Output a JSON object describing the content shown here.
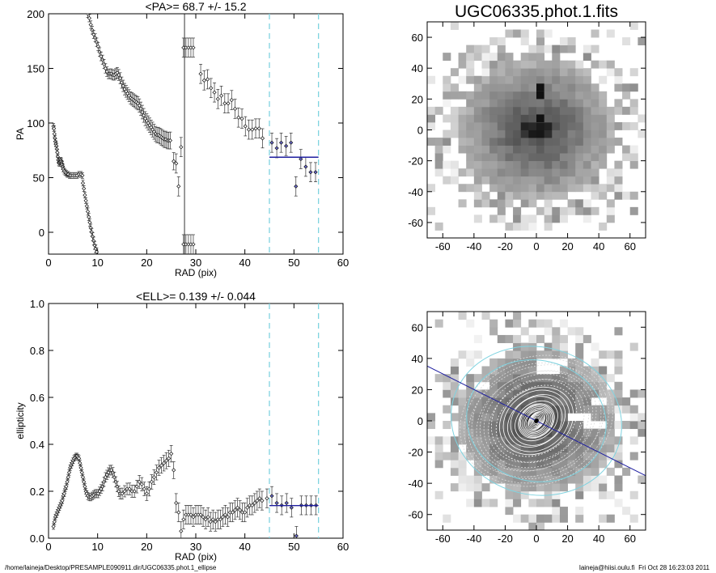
{
  "chart_data": [
    {
      "id": "pa",
      "type": "scatter",
      "title": "<PA>=  68.7 +/-  15.2",
      "xlabel": "RAD (pix)",
      "ylabel": "PA",
      "xlim": [
        0,
        60
      ],
      "ylim": [
        -20,
        200
      ],
      "xticks": [
        0,
        10,
        20,
        30,
        40,
        50,
        60
      ],
      "yticks": [
        0,
        50,
        100,
        150,
        200
      ],
      "vlines": [
        45,
        55
      ],
      "vline_color": "#7fd3e0",
      "mean": 68.7,
      "mean_range": [
        45,
        55
      ],
      "mean_color": "#1f1fa0",
      "points": [
        [
          1.0,
          97
        ],
        [
          1.1,
          95
        ],
        [
          1.2,
          90
        ],
        [
          1.3,
          86
        ],
        [
          1.4,
          83
        ],
        [
          1.5,
          81
        ],
        [
          1.6,
          79
        ],
        [
          1.7,
          76
        ],
        [
          1.8,
          73
        ],
        [
          1.9,
          69
        ],
        [
          2.0,
          66
        ],
        [
          2.1,
          64
        ],
        [
          2.2,
          63
        ],
        [
          2.3,
          64
        ],
        [
          2.4,
          65
        ],
        [
          2.5,
          66
        ],
        [
          2.6,
          65
        ],
        [
          2.7,
          63
        ],
        [
          2.8,
          62
        ],
        [
          2.9,
          60
        ],
        [
          3.0,
          58
        ],
        [
          3.2,
          56
        ],
        [
          3.4,
          55
        ],
        [
          3.6,
          54
        ],
        [
          3.8,
          53
        ],
        [
          4.0,
          53
        ],
        [
          4.3,
          52
        ],
        [
          4.6,
          52
        ],
        [
          5.0,
          52
        ],
        [
          5.4,
          52
        ],
        [
          5.8,
          52
        ],
        [
          6.2,
          53
        ],
        [
          6.6,
          53
        ],
        [
          6.9,
          52
        ],
        [
          7.0,
          45
        ],
        [
          7.2,
          40
        ],
        [
          7.4,
          34
        ],
        [
          7.6,
          29
        ],
        [
          7.8,
          24
        ],
        [
          8.0,
          19
        ],
        [
          8.2,
          14
        ],
        [
          8.4,
          9
        ],
        [
          8.6,
          4
        ],
        [
          8.8,
          0
        ],
        [
          9.0,
          -4
        ],
        [
          9.2,
          -8
        ],
        [
          9.4,
          -12
        ],
        [
          9.6,
          -15
        ],
        [
          9.8,
          -18
        ],
        [
          8.0,
          200
        ],
        [
          8.3,
          196
        ],
        [
          8.6,
          190
        ],
        [
          8.9,
          185
        ],
        [
          9.2,
          181
        ],
        [
          9.5,
          178
        ],
        [
          9.8,
          174
        ],
        [
          10.1,
          170
        ],
        [
          10.4,
          165
        ],
        [
          10.7,
          161
        ],
        [
          11.0,
          158
        ],
        [
          11.3,
          154
        ],
        [
          11.6,
          150
        ],
        [
          11.9,
          147
        ],
        [
          12.2,
          145
        ],
        [
          12.5,
          145
        ],
        [
          12.8,
          145
        ],
        [
          13.1,
          144
        ],
        [
          13.4,
          144
        ],
        [
          13.7,
          145
        ],
        [
          14.0,
          146
        ],
        [
          14.3,
          144
        ],
        [
          14.6,
          141
        ],
        [
          14.9,
          137
        ],
        [
          15.2,
          134
        ],
        [
          15.5,
          131
        ],
        [
          15.8,
          129
        ],
        [
          16.1,
          127
        ],
        [
          16.4,
          125
        ],
        [
          16.7,
          123
        ],
        [
          17.0,
          122
        ],
        [
          17.3,
          121
        ],
        [
          17.6,
          120
        ],
        [
          17.9,
          119
        ],
        [
          18.2,
          118
        ],
        [
          18.5,
          116
        ],
        [
          18.8,
          113
        ],
        [
          19.1,
          110
        ],
        [
          19.4,
          107
        ],
        [
          19.7,
          104
        ],
        [
          20.0,
          102
        ],
        [
          20.3,
          100
        ],
        [
          20.6,
          98
        ],
        [
          20.9,
          96
        ],
        [
          21.2,
          94
        ],
        [
          21.5,
          92
        ],
        [
          21.8,
          90
        ],
        [
          22.1,
          89
        ],
        [
          22.4,
          89
        ],
        [
          22.7,
          88
        ],
        [
          23.0,
          87
        ],
        [
          23.3,
          86
        ],
        [
          23.6,
          85
        ],
        [
          23.9,
          85
        ],
        [
          24.2,
          84
        ],
        [
          24.5,
          84
        ],
        [
          24.8,
          84
        ],
        [
          25.5,
          65
        ],
        [
          26.0,
          63
        ],
        [
          26.5,
          42
        ],
        [
          27.0,
          78
        ],
        [
          27.5,
          169
        ],
        [
          28.0,
          169
        ],
        [
          28.5,
          169
        ],
        [
          29.0,
          169
        ],
        [
          29.5,
          169
        ],
        [
          27.5,
          -11
        ],
        [
          28.0,
          -11
        ],
        [
          28.5,
          -11
        ],
        [
          29.0,
          -11
        ],
        [
          29.5,
          -11
        ],
        [
          31.0,
          145
        ],
        [
          31.7,
          139
        ],
        [
          32.4,
          140
        ],
        [
          33.1,
          132
        ],
        [
          33.8,
          128
        ],
        [
          34.5,
          122
        ],
        [
          35.2,
          125
        ],
        [
          35.9,
          118
        ],
        [
          36.6,
          118
        ],
        [
          37.3,
          121
        ],
        [
          38.0,
          113
        ],
        [
          38.7,
          105
        ],
        [
          39.4,
          104
        ],
        [
          40.1,
          97
        ],
        [
          40.8,
          94
        ],
        [
          41.5,
          94
        ],
        [
          42.2,
          95
        ],
        [
          42.9,
          95
        ],
        [
          43.6,
          86
        ],
        [
          45.5,
          82
        ],
        [
          46.5,
          77
        ],
        [
          47.4,
          82
        ],
        [
          48.4,
          79
        ],
        [
          49.4,
          82
        ],
        [
          50.4,
          42
        ],
        [
          51.4,
          67
        ],
        [
          52.4,
          60
        ],
        [
          53.4,
          55
        ],
        [
          54.4,
          55
        ]
      ]
    },
    {
      "id": "ell",
      "type": "scatter",
      "title": "<ELL>= 0.139 +/-  0.044",
      "xlabel": "RAD (pix)",
      "ylabel": "ellipticity",
      "xlim": [
        0,
        60
      ],
      "ylim": [
        0,
        1
      ],
      "xticks": [
        0,
        10,
        20,
        30,
        40,
        50,
        60
      ],
      "yticks": [
        0.0,
        0.2,
        0.4,
        0.6,
        0.8,
        1.0
      ],
      "vlines": [
        45,
        55
      ],
      "vline_color": "#7fd3e0",
      "mean": 0.139,
      "mean_range": [
        45,
        55
      ],
      "mean_color": "#1f1fa0",
      "points": [
        [
          1.0,
          0.05
        ],
        [
          1.2,
          0.07
        ],
        [
          1.4,
          0.09
        ],
        [
          1.6,
          0.1
        ],
        [
          1.8,
          0.11
        ],
        [
          2.0,
          0.12
        ],
        [
          2.2,
          0.13
        ],
        [
          2.4,
          0.14
        ],
        [
          2.6,
          0.15
        ],
        [
          2.8,
          0.16
        ],
        [
          3.0,
          0.18
        ],
        [
          3.2,
          0.19
        ],
        [
          3.4,
          0.21
        ],
        [
          3.6,
          0.22
        ],
        [
          3.8,
          0.24
        ],
        [
          4.0,
          0.26
        ],
        [
          4.2,
          0.28
        ],
        [
          4.4,
          0.3
        ],
        [
          4.6,
          0.31
        ],
        [
          4.8,
          0.32
        ],
        [
          5.0,
          0.33
        ],
        [
          5.2,
          0.34
        ],
        [
          5.4,
          0.345
        ],
        [
          5.6,
          0.35
        ],
        [
          5.8,
          0.35
        ],
        [
          6.0,
          0.345
        ],
        [
          6.2,
          0.34
        ],
        [
          6.4,
          0.32
        ],
        [
          6.6,
          0.3
        ],
        [
          6.8,
          0.28
        ],
        [
          7.0,
          0.26
        ],
        [
          7.2,
          0.24
        ],
        [
          7.4,
          0.22
        ],
        [
          7.6,
          0.2
        ],
        [
          7.8,
          0.19
        ],
        [
          8.0,
          0.18
        ],
        [
          8.3,
          0.175
        ],
        [
          8.6,
          0.175
        ],
        [
          8.9,
          0.18
        ],
        [
          9.2,
          0.185
        ],
        [
          9.5,
          0.19
        ],
        [
          9.8,
          0.19
        ],
        [
          10.1,
          0.19
        ],
        [
          10.4,
          0.2
        ],
        [
          10.7,
          0.21
        ],
        [
          11.0,
          0.22
        ],
        [
          11.3,
          0.24
        ],
        [
          11.6,
          0.26
        ],
        [
          11.9,
          0.27
        ],
        [
          12.2,
          0.28
        ],
        [
          12.5,
          0.29
        ],
        [
          12.8,
          0.29
        ],
        [
          13.1,
          0.28
        ],
        [
          13.4,
          0.26
        ],
        [
          13.7,
          0.24
        ],
        [
          14.0,
          0.22
        ],
        [
          14.3,
          0.2
        ],
        [
          14.6,
          0.19
        ],
        [
          15.0,
          0.19
        ],
        [
          15.5,
          0.2
        ],
        [
          16.0,
          0.21
        ],
        [
          16.5,
          0.21
        ],
        [
          17.0,
          0.2
        ],
        [
          17.5,
          0.2
        ],
        [
          18.0,
          0.22
        ],
        [
          18.5,
          0.24
        ],
        [
          19.0,
          0.23
        ],
        [
          19.5,
          0.21
        ],
        [
          20.0,
          0.19
        ],
        [
          20.5,
          0.21
        ],
        [
          21.0,
          0.24
        ],
        [
          21.5,
          0.26
        ],
        [
          22.0,
          0.28
        ],
        [
          22.5,
          0.3
        ],
        [
          23.0,
          0.31
        ],
        [
          23.5,
          0.32
        ],
        [
          24.0,
          0.33
        ],
        [
          24.5,
          0.34
        ],
        [
          25.0,
          0.36
        ],
        [
          25.5,
          0.29
        ],
        [
          26.0,
          0.15
        ],
        [
          26.5,
          0.11
        ],
        [
          27.0,
          0.03
        ],
        [
          27.5,
          0.08
        ],
        [
          28.0,
          0.1
        ],
        [
          28.5,
          0.1
        ],
        [
          29.0,
          0.1
        ],
        [
          29.5,
          0.09
        ],
        [
          30.0,
          0.1
        ],
        [
          30.5,
          0.1
        ],
        [
          31.0,
          0.1
        ],
        [
          31.5,
          0.09
        ],
        [
          32.0,
          0.08
        ],
        [
          32.5,
          0.09
        ],
        [
          33.0,
          0.07
        ],
        [
          33.5,
          0.08
        ],
        [
          34.0,
          0.07
        ],
        [
          34.5,
          0.08
        ],
        [
          35.0,
          0.08
        ],
        [
          35.5,
          0.09
        ],
        [
          36.0,
          0.1
        ],
        [
          36.5,
          0.09
        ],
        [
          37.0,
          0.11
        ],
        [
          37.5,
          0.11
        ],
        [
          38.0,
          0.12
        ],
        [
          38.5,
          0.13
        ],
        [
          39.0,
          0.12
        ],
        [
          39.5,
          0.11
        ],
        [
          40.0,
          0.11
        ],
        [
          40.5,
          0.13
        ],
        [
          41.0,
          0.14
        ],
        [
          41.5,
          0.14
        ],
        [
          42.0,
          0.15
        ],
        [
          42.5,
          0.16
        ],
        [
          43.0,
          0.17
        ],
        [
          43.5,
          0.16
        ],
        [
          44.5,
          0.17
        ],
        [
          45.5,
          0.18
        ],
        [
          46.5,
          0.15
        ],
        [
          47.5,
          0.14
        ],
        [
          48.5,
          0.15
        ],
        [
          49.5,
          0.13
        ],
        [
          50.5,
          0.01
        ],
        [
          51.5,
          0.14
        ],
        [
          52.5,
          0.14
        ],
        [
          53.5,
          0.14
        ],
        [
          54.5,
          0.14
        ]
      ]
    },
    {
      "id": "img",
      "type": "heatmap",
      "title": "UGC06335.phot.1.fits",
      "xlim": [
        -70,
        70
      ],
      "ylim": [
        -70,
        70
      ],
      "xticks": [
        -60,
        -40,
        -20,
        0,
        20,
        40,
        60
      ],
      "yticks": [
        -60,
        -40,
        -20,
        0,
        20,
        40,
        60
      ]
    },
    {
      "id": "model",
      "type": "heatmap",
      "xlim": [
        -70,
        70
      ],
      "ylim": [
        -70,
        70
      ],
      "xticks": [
        -60,
        -40,
        -20,
        0,
        20,
        40,
        60
      ],
      "yticks": [
        -60,
        -40,
        -20,
        0,
        20,
        40,
        60
      ],
      "ellipse_color": "#7fd3e0",
      "line_color": "#1f1fa0"
    }
  ],
  "footer": {
    "left": "/home/laineja/Desktop/PRESAMPLE090911.dir/UGC06335.phot.1_ellipse",
    "right": "laineja@hiisi.oulu.fi  Fri Oct 28 16:23:03 2011"
  }
}
